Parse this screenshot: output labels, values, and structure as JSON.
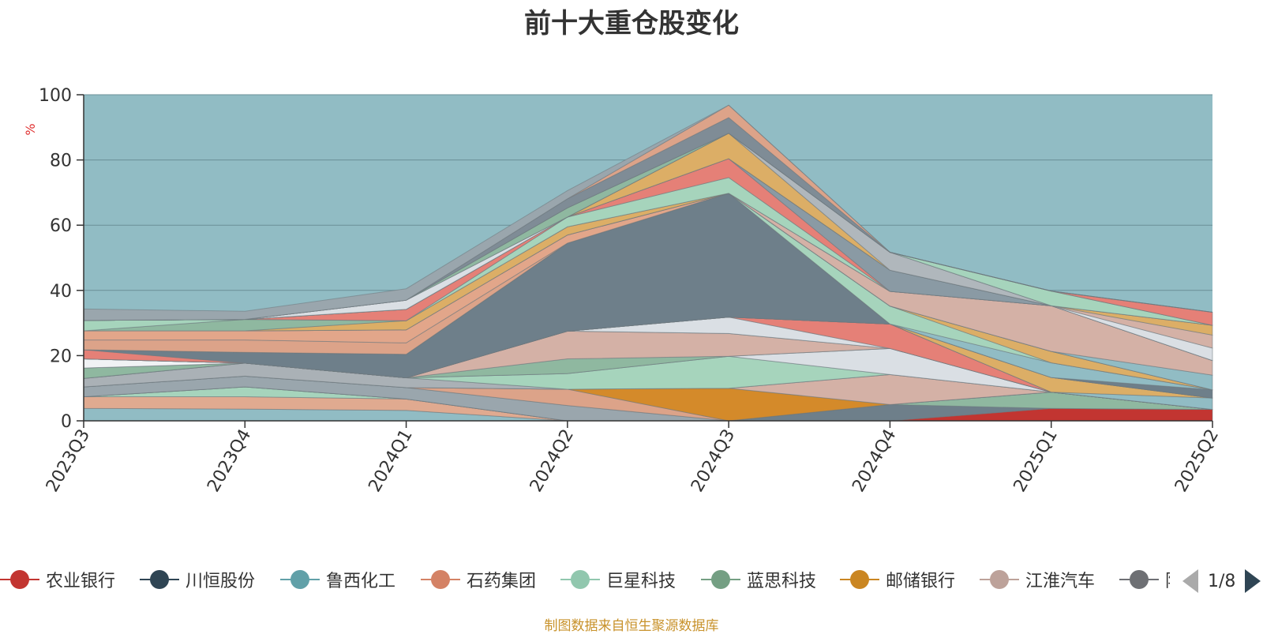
{
  "title": "前十大重仓股变化",
  "footer": "制图数据来自恒生聚源数据库",
  "legend_pager": "1/8",
  "chart_data": {
    "type": "area",
    "stacked": true,
    "title": "前十大重仓股变化",
    "ylabel": "%",
    "ylim": [
      0,
      100
    ],
    "yticks": [
      0,
      20,
      40,
      60,
      80,
      100
    ],
    "grid": true,
    "legend_position": "bottom",
    "categories": [
      "2023Q3",
      "2023Q4",
      "2024Q1",
      "2024Q2",
      "2024Q3",
      "2024Q4",
      "2025Q1",
      "2025Q2"
    ],
    "series": [
      {
        "name": "",
        "color": "#91bcc4",
        "values": [
          3.8,
          3.6,
          3.2,
          0,
          0,
          0,
          0,
          0
        ]
      },
      {
        "name": "",
        "color": "#e0aa90",
        "values": [
          3.6,
          3.8,
          3.5,
          0,
          0,
          0,
          0,
          0
        ]
      },
      {
        "name": "",
        "color": "#a6d4bc",
        "values": [
          0,
          3.0,
          0,
          0,
          0,
          0,
          0,
          0
        ]
      },
      {
        "name": "农业银行",
        "color": "#c23531",
        "values": [
          0,
          0,
          0,
          0,
          0,
          0,
          3.8,
          3.5
        ]
      },
      {
        "name": "",
        "color": "#6e7f8a",
        "values": [
          0,
          0,
          0,
          0,
          0,
          5.0,
          0,
          0
        ]
      },
      {
        "name": "",
        "color": "#8fb8a0",
        "values": [
          0,
          0,
          0,
          0,
          0,
          0,
          5.0,
          0
        ]
      },
      {
        "name": "",
        "color": "#9aa6ad",
        "values": [
          3.0,
          3.3,
          3.5,
          4.7,
          0,
          0,
          0,
          0
        ]
      },
      {
        "name": "",
        "color": "#dca389",
        "values": [
          0,
          0,
          0,
          5.0,
          0,
          0,
          0,
          0
        ]
      },
      {
        "name": "邮储银行",
        "color": "#d48a2a",
        "values": [
          0,
          0,
          0,
          0,
          10.0,
          0,
          0,
          0
        ]
      },
      {
        "name": "",
        "color": "#d4b1a6",
        "values": [
          0,
          0,
          0,
          0,
          0,
          9.2,
          0,
          0
        ]
      },
      {
        "name": "",
        "color": "#aab1b6",
        "values": [
          2.6,
          4.0,
          3.0,
          0,
          0,
          0,
          0,
          0
        ]
      },
      {
        "name": "",
        "color": "#a6d4bc",
        "values": [
          0,
          0,
          0,
          4.8,
          9.8,
          0,
          0,
          0
        ]
      },
      {
        "name": "",
        "color": "#dadfe4",
        "values": [
          0,
          0,
          0,
          0,
          0,
          8.0,
          0,
          0
        ]
      },
      {
        "name": "",
        "color": "#8fb8a0",
        "values": [
          3.2,
          0,
          0,
          4.5,
          0,
          0,
          0,
          0
        ]
      },
      {
        "name": "",
        "color": "#d4b1a6",
        "values": [
          0,
          0,
          0,
          8.5,
          7.0,
          0,
          0,
          0
        ]
      },
      {
        "name": "",
        "color": "#f0f2f4",
        "values": [
          2.8,
          0,
          0,
          0,
          0,
          0,
          0,
          0
        ]
      },
      {
        "name": "",
        "color": "#dadfe4",
        "values": [
          0,
          0,
          0,
          0,
          5.0,
          0,
          0,
          0
        ]
      },
      {
        "name": "",
        "color": "#e58077",
        "values": [
          0,
          0,
          0,
          0,
          0,
          7.5,
          0,
          0
        ]
      },
      {
        "name": "",
        "color": "#c8d0d6",
        "values": [
          0,
          0,
          0,
          0,
          0,
          0,
          0,
          0
        ]
      },
      {
        "name": "",
        "color": "#91bcc4",
        "values": [
          0,
          0,
          0,
          0,
          0,
          0,
          0,
          3.5
        ]
      },
      {
        "name": "",
        "color": "#dcae66",
        "values": [
          0,
          0,
          0,
          0,
          0,
          0,
          4.5,
          0
        ]
      },
      {
        "name": "",
        "color": "#d48a2a",
        "values": [
          0,
          0,
          0,
          0,
          0,
          0,
          0,
          0
        ]
      },
      {
        "name": "",
        "color": "#e58077",
        "values": [
          2.8,
          0,
          0,
          0,
          0,
          0,
          0,
          0
        ]
      },
      {
        "name": "",
        "color": "#6e7f8a",
        "values": [
          0,
          3.3,
          7.2,
          27.0,
          38.0,
          0,
          0,
          0
        ]
      },
      {
        "name": "",
        "color": "#6e7f8a",
        "values": [
          0,
          0,
          0,
          0,
          0,
          0,
          0,
          2.5
        ]
      },
      {
        "name": "",
        "color": "#91bcc4",
        "values": [
          0,
          0,
          0,
          0,
          0,
          0,
          4.5,
          0
        ]
      },
      {
        "name": "",
        "color": "#a6d4bc",
        "values": [
          0,
          0,
          0,
          0,
          0,
          5.5,
          0,
          0
        ]
      },
      {
        "name": "",
        "color": "#dcae66",
        "values": [
          0,
          0,
          0,
          0,
          0,
          0,
          3.5,
          0
        ]
      },
      {
        "name": "",
        "color": "#dca389",
        "values": [
          3.0,
          3.8,
          3.5,
          0,
          0,
          0,
          0,
          0
        ]
      },
      {
        "name": "",
        "color": "#e2a68a",
        "values": [
          2.8,
          2.8,
          4.0,
          2.5,
          0,
          0,
          0,
          0
        ]
      },
      {
        "name": "",
        "color": "#91bcc4",
        "values": [
          0,
          0,
          0,
          0,
          0,
          0,
          0,
          4.5
        ]
      },
      {
        "name": "",
        "color": "#d4b1a6",
        "values": [
          0,
          0,
          0,
          0,
          0,
          4.5,
          14.0,
          4.5
        ]
      },
      {
        "name": "",
        "color": "#dcae66",
        "values": [
          0,
          0,
          2.8,
          2.5,
          0,
          0,
          0,
          0
        ]
      },
      {
        "name": "",
        "color": "#8fb8a0",
        "values": [
          0,
          3.5,
          0,
          0,
          0,
          0,
          0,
          0
        ]
      },
      {
        "name": "",
        "color": "#a6d4bc",
        "values": [
          3.2,
          0,
          0,
          3.0,
          4.8,
          0,
          0,
          0
        ]
      },
      {
        "name": "",
        "color": "#e58077",
        "values": [
          0,
          0,
          3.5,
          0,
          5.8,
          0,
          0,
          0
        ]
      },
      {
        "name": "",
        "color": "#8a9aa4",
        "values": [
          0,
          0,
          0,
          0,
          0,
          6.5,
          0,
          0
        ]
      },
      {
        "name": "",
        "color": "#dadfe4",
        "values": [
          0,
          0,
          0,
          0,
          0,
          0,
          0,
          3.8
        ]
      },
      {
        "name": "",
        "color": "#d4b1a6",
        "values": [
          0,
          0,
          0,
          0,
          0,
          0,
          0,
          4.0
        ]
      },
      {
        "name": "",
        "color": "#dcae66",
        "values": [
          0,
          0,
          0,
          0,
          7.8,
          0,
          0,
          3.0
        ]
      },
      {
        "name": "",
        "color": "#b0b7bc",
        "values": [
          0,
          0,
          0,
          0,
          0,
          5.5,
          0,
          0
        ]
      },
      {
        "name": "",
        "color": "#dadfe4",
        "values": [
          0,
          0,
          2.8,
          0,
          0,
          0,
          0,
          0
        ]
      },
      {
        "name": "",
        "color": "#a6d4bc",
        "values": [
          0,
          0,
          0,
          0,
          0,
          0,
          4.5,
          0
        ]
      },
      {
        "name": "",
        "color": "#8fb8a0",
        "values": [
          0,
          0,
          0,
          2.8,
          0,
          0,
          0,
          0
        ]
      },
      {
        "name": "",
        "color": "#e58077",
        "values": [
          0,
          0,
          0,
          0,
          0,
          0,
          0,
          4.0
        ]
      },
      {
        "name": "",
        "color": "#7f8c96",
        "values": [
          0,
          0,
          0,
          2.8,
          4.8,
          0,
          0,
          0
        ]
      },
      {
        "name": "",
        "color": "#dca389",
        "values": [
          0,
          0,
          0,
          0,
          3.8,
          0,
          0,
          0
        ]
      },
      {
        "name": "",
        "color": "#9aa6ad",
        "values": [
          3.5,
          2.5,
          3.5,
          2.5,
          0,
          0,
          0,
          0
        ]
      }
    ]
  },
  "legend": [
    {
      "name": "农业银行",
      "color": "#c23531"
    },
    {
      "name": "川恒股份",
      "color": "#2f4554"
    },
    {
      "name": "鲁西化工",
      "color": "#61a0a8"
    },
    {
      "name": "石药集团",
      "color": "#d48265"
    },
    {
      "name": "巨星科技",
      "color": "#91c7ae"
    },
    {
      "name": "蓝思科技",
      "color": "#749f83"
    },
    {
      "name": "邮储银行",
      "color": "#ca8622"
    },
    {
      "name": "江淮汽车",
      "color": "#bda29a"
    },
    {
      "name": "阳",
      "color": "#6e7074"
    }
  ]
}
